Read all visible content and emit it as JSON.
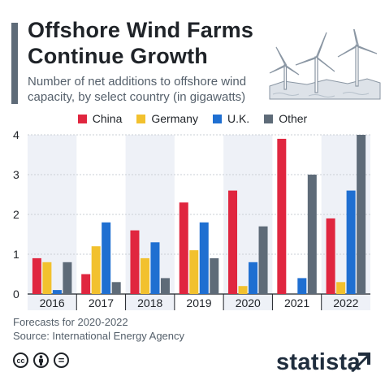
{
  "header": {
    "title_line1": "Offshore Wind Farms",
    "title_line2": "Continue Growth",
    "subtitle_line1": "Number of net additions to offshore wind",
    "subtitle_line2": "capacity, by select country (in gigawatts)"
  },
  "chart_data": {
    "type": "bar",
    "categories": [
      "2016",
      "2017",
      "2018",
      "2019",
      "2020",
      "2021",
      "2022"
    ],
    "series": [
      {
        "name": "China",
        "color": "#e0263f",
        "values": [
          0.9,
          0.5,
          1.6,
          2.3,
          2.6,
          3.9,
          1.9
        ]
      },
      {
        "name": "Germany",
        "color": "#f2c12e",
        "values": [
          0.8,
          1.2,
          0.9,
          1.1,
          0.2,
          0.0,
          0.3
        ]
      },
      {
        "name": "U.K.",
        "color": "#1f6fd1",
        "values": [
          0.1,
          1.8,
          1.3,
          1.8,
          0.8,
          0.4,
          2.6
        ]
      },
      {
        "name": "Other",
        "color": "#5e6b78",
        "values": [
          0.8,
          0.3,
          0.4,
          0.9,
          1.7,
          3.0,
          4.0
        ]
      }
    ],
    "yticks": [
      "0",
      "1",
      "2",
      "3",
      "4"
    ],
    "ylim": [
      0,
      4
    ],
    "grid": true,
    "legend": "top-center",
    "shaded_categories": [
      "2016",
      "2018",
      "2020",
      "2022"
    ]
  },
  "footer": {
    "note_line1": "Forecasts for 2020-2022",
    "note_line2": "Source: International Energy Agency",
    "brand": "statista",
    "license_icons": [
      "cc",
      "by",
      "="
    ]
  }
}
